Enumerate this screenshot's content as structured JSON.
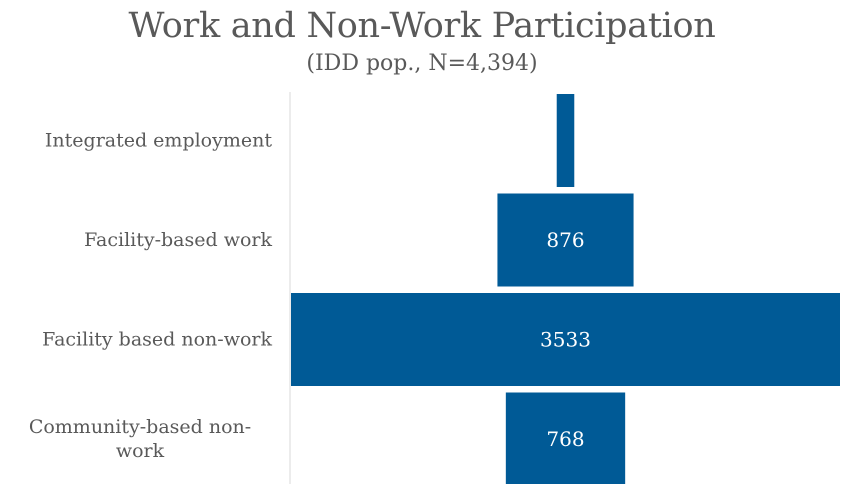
{
  "chart_data": {
    "type": "bar",
    "title": "Work and Non-Work Participation",
    "subtitle": "(IDD pop., N=4,394)",
    "orientation": "horizontal-centered",
    "categories": [
      [
        "Integrated employment"
      ],
      [
        "Facility-based work"
      ],
      [
        "Facility based non-work"
      ],
      [
        "Community-based non-",
        "work"
      ]
    ],
    "values": [
      113,
      876,
      3533,
      768
    ],
    "data_labels": [
      "",
      "876",
      "3533",
      "768"
    ],
    "xlim": [
      0,
      3533
    ],
    "grid": false,
    "legend": "none",
    "bar_color": "#005a96",
    "axis_color": "#d9d9d9",
    "label_color": "#595959"
  }
}
